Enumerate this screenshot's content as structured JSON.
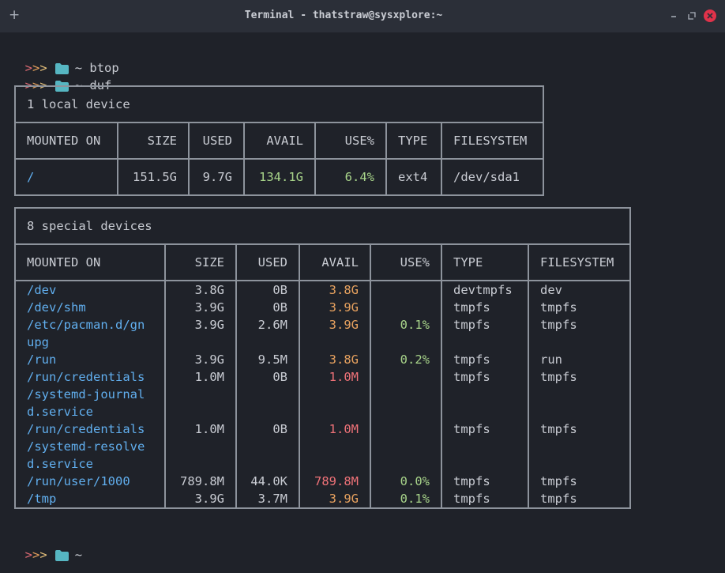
{
  "window": {
    "title": "Terminal - thatstraw@sysxplore:~",
    "plus_label": "+",
    "minimize_label": "–",
    "maximize_label": "⤢"
  },
  "prompt": {
    "p1": ">",
    "p2": ">",
    "p3": ">",
    "tilde": "~"
  },
  "commands": [
    "btop",
    "duf"
  ],
  "local": {
    "caption": "1 local device",
    "headers": [
      "MOUNTED ON",
      "SIZE",
      "USED",
      "AVAIL",
      "USE%",
      "TYPE",
      "FILESYSTEM"
    ],
    "rows": [
      [
        "/",
        "151.5G",
        "9.7G",
        "134.1G",
        "6.4%",
        "ext4",
        "/dev/sda1"
      ]
    ]
  },
  "special": {
    "caption": "8 special devices",
    "headers": [
      "MOUNTED ON",
      "SIZE",
      "USED",
      "AVAIL",
      "USE%",
      "TYPE",
      "FILESYSTEM"
    ],
    "rows": [
      {
        "mount": [
          "/dev"
        ],
        "size": "3.8G",
        "used": "0B",
        "avail": "3.8G",
        "use": "",
        "type": "devtmpfs",
        "fs": "dev"
      },
      {
        "mount": [
          "/dev/shm"
        ],
        "size": "3.9G",
        "used": "0B",
        "avail": "3.9G",
        "use": "",
        "type": "tmpfs",
        "fs": "tmpfs"
      },
      {
        "mount": [
          "/etc/pacman.d/gn",
          "upg"
        ],
        "size": "3.9G",
        "used": "2.6M",
        "avail": "3.9G",
        "use": "0.1%",
        "type": "tmpfs",
        "fs": "tmpfs"
      },
      {
        "mount": [
          "/run"
        ],
        "size": "3.9G",
        "used": "9.5M",
        "avail": "3.8G",
        "use": "0.2%",
        "type": "tmpfs",
        "fs": "run"
      },
      {
        "mount": [
          "/run/credentials",
          "/systemd-journal",
          "d.service"
        ],
        "size": "1.0M",
        "used": "0B",
        "avail": "1.0M",
        "use": "",
        "type": "tmpfs",
        "fs": "tmpfs"
      },
      {
        "mount": [
          "/run/credentials",
          "/systemd-resolve",
          "d.service"
        ],
        "size": "1.0M",
        "used": "0B",
        "avail": "1.0M",
        "use": "",
        "type": "tmpfs",
        "fs": "tmpfs"
      },
      {
        "mount": [
          "/run/user/1000"
        ],
        "size": "789.8M",
        "used": "44.0K",
        "avail": "789.8M",
        "use": "0.0%",
        "type": "tmpfs",
        "fs": "tmpfs"
      },
      {
        "mount": [
          "/tmp"
        ],
        "size": "3.9G",
        "used": "3.7M",
        "avail": "3.9G",
        "use": "0.1%",
        "type": "tmpfs",
        "fs": "tmpfs"
      }
    ]
  },
  "colors": {
    "background": "#1f2229",
    "titlebar": "#2b2f38",
    "border": "#8d939c",
    "mount": "#61afef",
    "avail_ok": "#a8d48a",
    "avail_warn": "#e8a25f",
    "avail_crit": "#ef7278",
    "folder_icon": "#56b6c2"
  },
  "icons": [
    "plus-icon",
    "minimize-icon",
    "maximize-icon",
    "close-icon",
    "folder-icon"
  ]
}
